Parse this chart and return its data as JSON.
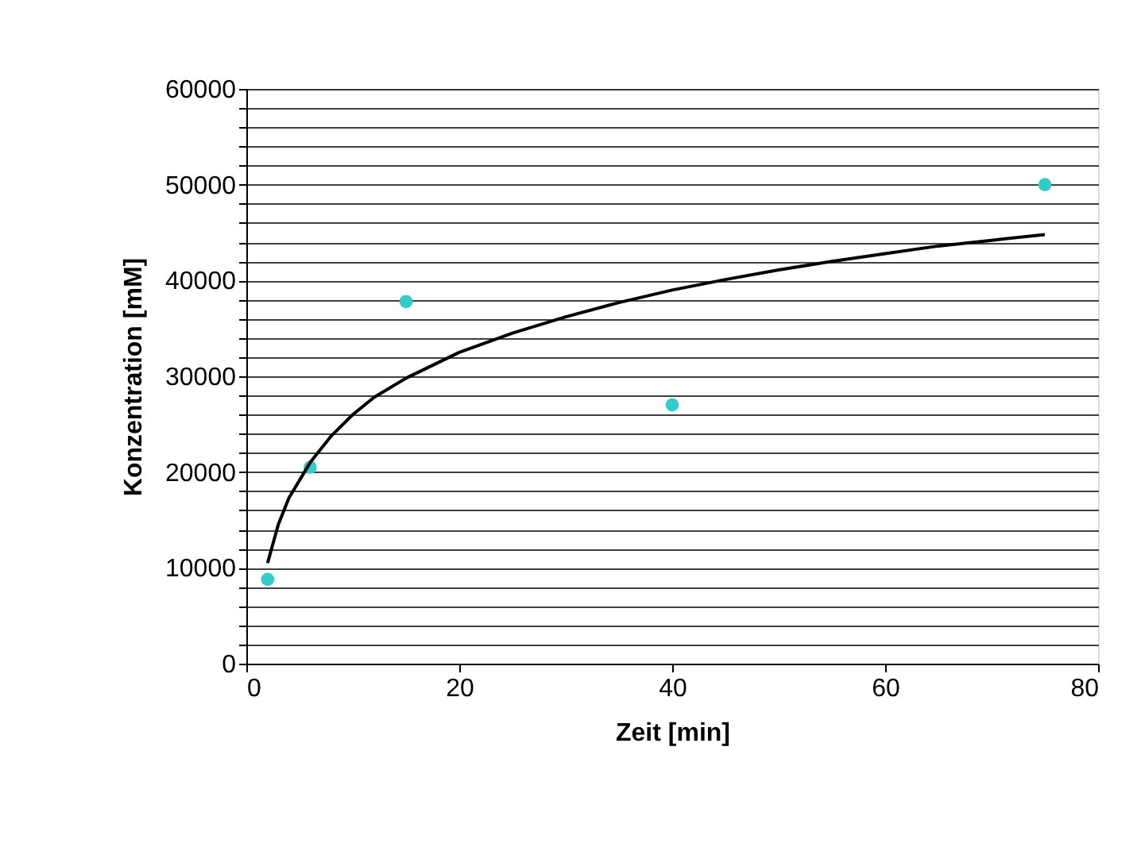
{
  "chart_data": {
    "type": "scatter",
    "xlabel": "Zeit [min]",
    "ylabel": "Konzentration [mM]",
    "xlim": [
      0,
      80
    ],
    "xticks": [
      0,
      20,
      40,
      60,
      80
    ],
    "ylim": [
      0,
      60000
    ],
    "yticks": [
      0,
      {
        "value": 2000,
        "label": null
      },
      {
        "value": 4000,
        "label": null
      },
      {
        "value": 6000,
        "label": null
      },
      {
        "value": 8000,
        "label": null
      },
      10000,
      {
        "value": 12000,
        "label": null
      },
      {
        "value": 14000,
        "label": null
      },
      {
        "value": 16000,
        "label": null
      },
      {
        "value": 18000,
        "label": null
      },
      20000,
      {
        "value": 22000,
        "label": null
      },
      {
        "value": 24000,
        "label": null
      },
      {
        "value": 26000,
        "label": null
      },
      {
        "value": 28000,
        "label": null
      },
      30000,
      {
        "value": 32000,
        "label": null
      },
      {
        "value": 34000,
        "label": null
      },
      {
        "value": 36000,
        "label": null
      },
      {
        "value": 38000,
        "label": null
      },
      40000,
      {
        "value": 42000,
        "label": null
      },
      {
        "value": 44000,
        "label": null
      },
      {
        "value": 46000,
        "label": null
      },
      {
        "value": 48000,
        "label": null
      },
      50000,
      {
        "value": 52000,
        "label": null
      },
      {
        "value": 54000,
        "label": null
      },
      {
        "value": 56000,
        "label": null
      },
      {
        "value": 58000,
        "label": null
      },
      60000
    ],
    "grid": "y",
    "legend": false,
    "series": [
      {
        "color": "#33cccc",
        "marker": "circle",
        "x": [
          2,
          6,
          15,
          40,
          75
        ],
        "values": [
          8800,
          20500,
          37800,
          27000,
          50000
        ]
      },
      {
        "type": "line",
        "color": "#000000",
        "line_style": "solid",
        "x": [
          2,
          3,
          4,
          6,
          8,
          10,
          12,
          15,
          20,
          25,
          30,
          35,
          40,
          45,
          50,
          55,
          60,
          65,
          70,
          75
        ],
        "values": [
          10500,
          14500,
          17300,
          21000,
          23800,
          26000,
          27800,
          29800,
          32500,
          34500,
          36200,
          37700,
          39000,
          40100,
          41100,
          42000,
          42800,
          43600,
          44200,
          44800
        ]
      }
    ]
  }
}
